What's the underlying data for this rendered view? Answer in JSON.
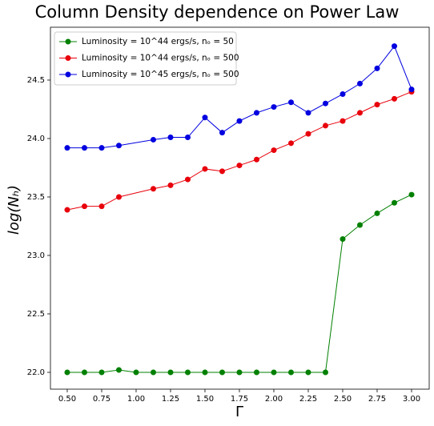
{
  "chart_data": {
    "type": "line",
    "title": "Column Density dependence on Power Law",
    "x_label": "Γ",
    "y_label": "log(Nₕ)",
    "xlim": [
      0.378,
      3.128
    ],
    "ylim": [
      21.856,
      24.952
    ],
    "xticks": [
      {
        "value": 0.5,
        "label": "0.50"
      },
      {
        "value": 0.75,
        "label": "0.75"
      },
      {
        "value": 1.0,
        "label": "1.00"
      },
      {
        "value": 1.25,
        "label": "1.25"
      },
      {
        "value": 1.5,
        "label": "1.50"
      },
      {
        "value": 1.75,
        "label": "1.75"
      },
      {
        "value": 2.0,
        "label": "2.00"
      },
      {
        "value": 2.25,
        "label": "2.25"
      },
      {
        "value": 2.5,
        "label": "2.50"
      },
      {
        "value": 2.75,
        "label": "2.75"
      },
      {
        "value": 3.0,
        "label": "3.00"
      }
    ],
    "yticks": [
      {
        "value": 22.0,
        "label": "22.0"
      },
      {
        "value": 22.5,
        "label": "22.5"
      },
      {
        "value": 23.0,
        "label": "23.0"
      },
      {
        "value": 23.5,
        "label": "23.5"
      },
      {
        "value": 24.0,
        "label": "24.0"
      },
      {
        "value": 24.5,
        "label": "24.5"
      }
    ],
    "grid": false,
    "legend": "upper left",
    "series": [
      {
        "name": "Luminosity = 10^44 ergs/s, nₒ = 50",
        "color": "#008000",
        "x": [
          0.5,
          0.625,
          0.75,
          0.875,
          1.0,
          1.125,
          1.25,
          1.375,
          1.5,
          1.625,
          1.75,
          1.875,
          2.0,
          2.125,
          2.25,
          2.375,
          2.5,
          2.625,
          2.75,
          2.875,
          3.0
        ],
        "values": [
          22.0,
          22.0,
          22.0,
          22.02,
          22.0,
          22.0,
          22.0,
          22.0,
          22.0,
          22.0,
          22.0,
          22.0,
          22.0,
          22.0,
          22.0,
          22.0,
          23.14,
          23.26,
          23.36,
          23.45,
          23.52
        ]
      },
      {
        "name": "Luminosity = 10^44 ergs/s, nₒ = 500",
        "color": "#e8000b",
        "x": [
          0.5,
          0.625,
          0.75,
          0.875,
          1.125,
          1.25,
          1.375,
          1.5,
          1.625,
          1.75,
          1.875,
          2.0,
          2.125,
          2.25,
          2.375,
          2.5,
          2.625,
          2.75,
          2.875,
          3.0
        ],
        "values": [
          23.39,
          23.42,
          23.42,
          23.5,
          23.57,
          23.6,
          23.65,
          23.74,
          23.72,
          23.77,
          23.82,
          23.9,
          23.96,
          24.04,
          24.11,
          24.15,
          24.22,
          24.29,
          24.34,
          24.4
        ]
      },
      {
        "name": "Luminosity = 10^45 ergs/s, nₒ = 500",
        "color": "#0000e0",
        "x": [
          0.5,
          0.625,
          0.75,
          0.875,
          1.125,
          1.25,
          1.375,
          1.5,
          1.625,
          1.75,
          1.875,
          2.0,
          2.125,
          2.25,
          2.375,
          2.5,
          2.625,
          2.75,
          2.875,
          3.0
        ],
        "values": [
          23.92,
          23.92,
          23.92,
          23.94,
          23.99,
          24.01,
          24.01,
          24.18,
          24.05,
          24.15,
          24.22,
          24.27,
          24.31,
          24.22,
          24.3,
          24.38,
          24.47,
          24.6,
          24.79,
          24.42
        ]
      }
    ]
  }
}
